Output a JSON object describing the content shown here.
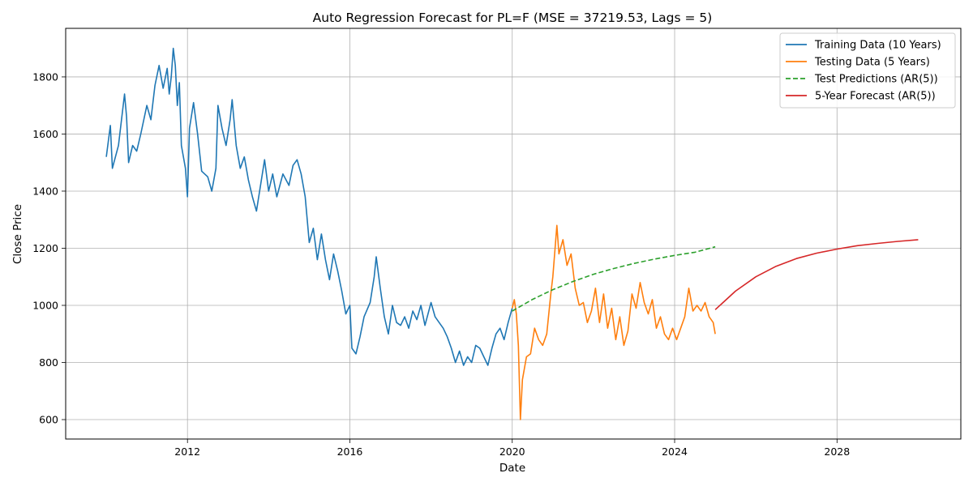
{
  "chart_data": {
    "type": "line",
    "title": "Auto Regression Forecast for PL=F (MSE = 37219.53, Lags = 5)",
    "xlabel": "Date",
    "ylabel": "Close Price",
    "xlim": [
      2009.0,
      2031.05
    ],
    "ylim": [
      532,
      1970
    ],
    "x_ticks": [
      2012,
      2016,
      2020,
      2024,
      2028
    ],
    "y_ticks": [
      600,
      800,
      1000,
      1200,
      1400,
      1600,
      1800
    ],
    "grid": true,
    "legend_position": "top-right",
    "series": [
      {
        "name": "Training Data (10 Years)",
        "color": "#1f77b4",
        "style": "solid",
        "points": [
          [
            2010.0,
            1520
          ],
          [
            2010.1,
            1630
          ],
          [
            2010.15,
            1480
          ],
          [
            2010.3,
            1560
          ],
          [
            2010.45,
            1740
          ],
          [
            2010.5,
            1660
          ],
          [
            2010.55,
            1500
          ],
          [
            2010.65,
            1560
          ],
          [
            2010.75,
            1540
          ],
          [
            2010.85,
            1600
          ],
          [
            2011.0,
            1700
          ],
          [
            2011.1,
            1650
          ],
          [
            2011.2,
            1770
          ],
          [
            2011.3,
            1840
          ],
          [
            2011.4,
            1760
          ],
          [
            2011.5,
            1830
          ],
          [
            2011.55,
            1740
          ],
          [
            2011.6,
            1800
          ],
          [
            2011.65,
            1900
          ],
          [
            2011.7,
            1840
          ],
          [
            2011.75,
            1700
          ],
          [
            2011.8,
            1780
          ],
          [
            2011.85,
            1560
          ],
          [
            2011.95,
            1480
          ],
          [
            2012.0,
            1380
          ],
          [
            2012.05,
            1620
          ],
          [
            2012.15,
            1710
          ],
          [
            2012.25,
            1600
          ],
          [
            2012.35,
            1470
          ],
          [
            2012.5,
            1450
          ],
          [
            2012.6,
            1400
          ],
          [
            2012.7,
            1480
          ],
          [
            2012.75,
            1700
          ],
          [
            2012.85,
            1620
          ],
          [
            2012.95,
            1560
          ],
          [
            2013.05,
            1650
          ],
          [
            2013.1,
            1720
          ],
          [
            2013.2,
            1560
          ],
          [
            2013.3,
            1480
          ],
          [
            2013.4,
            1520
          ],
          [
            2013.5,
            1440
          ],
          [
            2013.6,
            1380
          ],
          [
            2013.7,
            1330
          ],
          [
            2013.8,
            1420
          ],
          [
            2013.9,
            1510
          ],
          [
            2014.0,
            1400
          ],
          [
            2014.1,
            1460
          ],
          [
            2014.2,
            1380
          ],
          [
            2014.35,
            1460
          ],
          [
            2014.5,
            1420
          ],
          [
            2014.6,
            1490
          ],
          [
            2014.7,
            1510
          ],
          [
            2014.8,
            1460
          ],
          [
            2014.9,
            1380
          ],
          [
            2015.0,
            1220
          ],
          [
            2015.1,
            1270
          ],
          [
            2015.2,
            1160
          ],
          [
            2015.3,
            1250
          ],
          [
            2015.4,
            1160
          ],
          [
            2015.5,
            1090
          ],
          [
            2015.6,
            1180
          ],
          [
            2015.7,
            1120
          ],
          [
            2015.8,
            1050
          ],
          [
            2015.9,
            970
          ],
          [
            2016.0,
            1000
          ],
          [
            2016.05,
            850
          ],
          [
            2016.15,
            830
          ],
          [
            2016.25,
            890
          ],
          [
            2016.35,
            960
          ],
          [
            2016.5,
            1010
          ],
          [
            2016.6,
            1100
          ],
          [
            2016.65,
            1170
          ],
          [
            2016.75,
            1060
          ],
          [
            2016.85,
            960
          ],
          [
            2016.95,
            900
          ],
          [
            2017.05,
            1000
          ],
          [
            2017.15,
            940
          ],
          [
            2017.25,
            930
          ],
          [
            2017.35,
            960
          ],
          [
            2017.45,
            920
          ],
          [
            2017.55,
            980
          ],
          [
            2017.65,
            950
          ],
          [
            2017.75,
            1000
          ],
          [
            2017.85,
            930
          ],
          [
            2018.0,
            1010
          ],
          [
            2018.1,
            960
          ],
          [
            2018.2,
            940
          ],
          [
            2018.3,
            920
          ],
          [
            2018.4,
            890
          ],
          [
            2018.5,
            850
          ],
          [
            2018.6,
            800
          ],
          [
            2018.7,
            840
          ],
          [
            2018.8,
            790
          ],
          [
            2018.9,
            820
          ],
          [
            2019.0,
            800
          ],
          [
            2019.1,
            860
          ],
          [
            2019.2,
            850
          ],
          [
            2019.3,
            820
          ],
          [
            2019.4,
            790
          ],
          [
            2019.5,
            850
          ],
          [
            2019.6,
            900
          ],
          [
            2019.7,
            920
          ],
          [
            2019.8,
            880
          ],
          [
            2019.9,
            940
          ],
          [
            2020.0,
            990
          ]
        ]
      },
      {
        "name": "Testing Data (5 Years)",
        "color": "#ff7f0e",
        "style": "solid",
        "points": [
          [
            2020.0,
            990
          ],
          [
            2020.05,
            1020
          ],
          [
            2020.1,
            970
          ],
          [
            2020.15,
            860
          ],
          [
            2020.2,
            600
          ],
          [
            2020.25,
            740
          ],
          [
            2020.35,
            820
          ],
          [
            2020.45,
            830
          ],
          [
            2020.55,
            920
          ],
          [
            2020.65,
            880
          ],
          [
            2020.75,
            860
          ],
          [
            2020.85,
            900
          ],
          [
            2020.95,
            1040
          ],
          [
            2021.0,
            1100
          ],
          [
            2021.1,
            1280
          ],
          [
            2021.15,
            1180
          ],
          [
            2021.25,
            1230
          ],
          [
            2021.35,
            1140
          ],
          [
            2021.45,
            1180
          ],
          [
            2021.55,
            1060
          ],
          [
            2021.65,
            1000
          ],
          [
            2021.75,
            1010
          ],
          [
            2021.85,
            940
          ],
          [
            2021.95,
            980
          ],
          [
            2022.05,
            1060
          ],
          [
            2022.15,
            940
          ],
          [
            2022.25,
            1040
          ],
          [
            2022.35,
            920
          ],
          [
            2022.45,
            990
          ],
          [
            2022.55,
            880
          ],
          [
            2022.65,
            960
          ],
          [
            2022.75,
            860
          ],
          [
            2022.85,
            910
          ],
          [
            2022.95,
            1040
          ],
          [
            2023.05,
            990
          ],
          [
            2023.15,
            1080
          ],
          [
            2023.25,
            1010
          ],
          [
            2023.35,
            970
          ],
          [
            2023.45,
            1020
          ],
          [
            2023.55,
            920
          ],
          [
            2023.65,
            960
          ],
          [
            2023.75,
            900
          ],
          [
            2023.85,
            880
          ],
          [
            2023.95,
            920
          ],
          [
            2024.05,
            880
          ],
          [
            2024.15,
            920
          ],
          [
            2024.25,
            960
          ],
          [
            2024.35,
            1060
          ],
          [
            2024.45,
            980
          ],
          [
            2024.55,
            1000
          ],
          [
            2024.65,
            980
          ],
          [
            2024.75,
            1010
          ],
          [
            2024.85,
            960
          ],
          [
            2024.95,
            940
          ],
          [
            2025.0,
            900
          ]
        ]
      },
      {
        "name": "Test Predictions (AR(5))",
        "color": "#2ca02c",
        "style": "dashed",
        "points": [
          [
            2020.0,
            980
          ],
          [
            2020.5,
            1021
          ],
          [
            2021.0,
            1055
          ],
          [
            2021.5,
            1084
          ],
          [
            2022.0,
            1109
          ],
          [
            2022.5,
            1129
          ],
          [
            2023.0,
            1147
          ],
          [
            2023.5,
            1162
          ],
          [
            2024.0,
            1175
          ],
          [
            2024.5,
            1186
          ],
          [
            2025.0,
            1205
          ]
        ]
      },
      {
        "name": "5-Year Forecast (AR(5))",
        "color": "#d62728",
        "style": "solid",
        "points": [
          [
            2025.0,
            985
          ],
          [
            2025.5,
            1050
          ],
          [
            2026.0,
            1100
          ],
          [
            2026.5,
            1137
          ],
          [
            2027.0,
            1164
          ],
          [
            2027.5,
            1183
          ],
          [
            2028.0,
            1197
          ],
          [
            2028.5,
            1209
          ],
          [
            2029.0,
            1217
          ],
          [
            2029.5,
            1224
          ],
          [
            2030.0,
            1230
          ]
        ]
      }
    ]
  }
}
